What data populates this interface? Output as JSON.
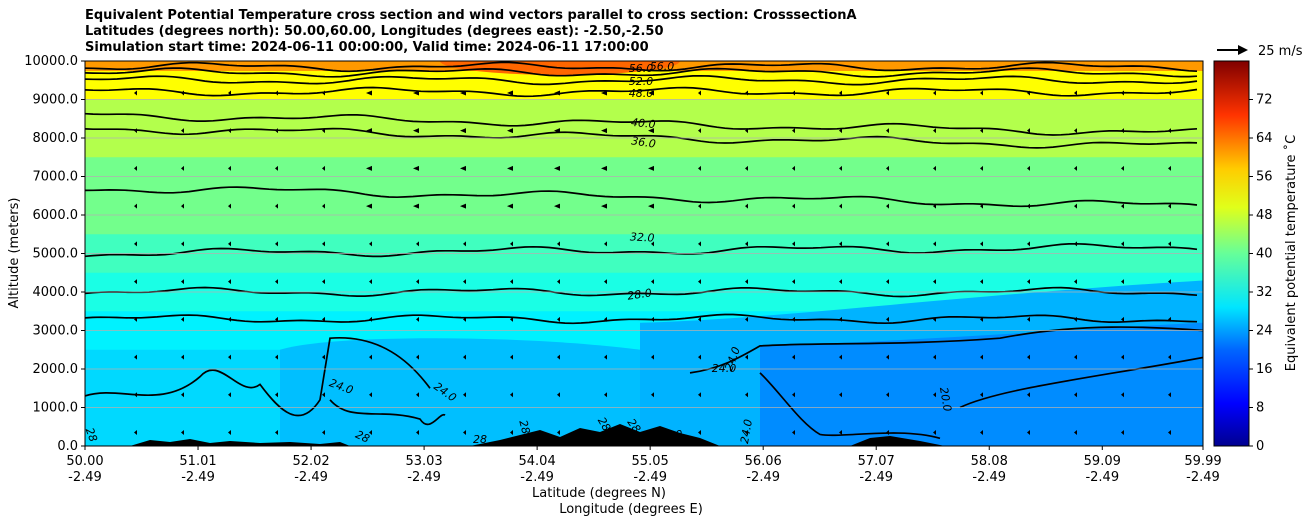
{
  "chart_data": {
    "type": "heatmap",
    "title_lines": [
      "Equivalent Potential Temperature cross section and wind vectors parallel to cross section: CrosssectionA",
      "Latitudes (degrees north): 50.00,60.00, Longitudes (degrees east): -2.50,-2.50",
      "Simulation start time: 2024-06-11 00:00:00, Valid time: 2024-06-11 17:00:00"
    ],
    "ylabel": "Altitude (meters)",
    "xlabel_lines": [
      "Latitude (degrees N)",
      "Longitude (degrees E)"
    ],
    "ylim": [
      0,
      10000
    ],
    "yticks": [
      "0.0",
      "1000.0",
      "2000.0",
      "3000.0",
      "4000.0",
      "5000.0",
      "6000.0",
      "7000.0",
      "8000.0",
      "9000.0",
      "10000.0"
    ],
    "xticks_lat": [
      "50.00",
      "51.01",
      "52.02",
      "53.03",
      "54.04",
      "55.05",
      "56.06",
      "57.07",
      "58.08",
      "59.09",
      "59.99"
    ],
    "xticks_lon": [
      "-2.49",
      "-2.49",
      "-2.49",
      "-2.49",
      "-2.49",
      "-2.49",
      "-2.49",
      "-2.49",
      "-2.49",
      "-2.49",
      "-2.49"
    ],
    "grid": "horizontal",
    "colorbar": {
      "label": "Equivalent potential temperature ˚C",
      "range": [
        0,
        80
      ],
      "ticks": [
        "0",
        "8",
        "16",
        "24",
        "32",
        "40",
        "48",
        "56",
        "64",
        "72"
      ],
      "colormap": "jet"
    },
    "quiver_key": "25 m/s",
    "contour_labels": [
      "56.0",
      "56.0",
      "52.0",
      "48.0",
      "40.0",
      "36.0",
      "32.0",
      "28.0",
      "24.0",
      "24.0",
      "24.0",
      "24.0",
      "20.0",
      "28",
      "28",
      "28",
      "28",
      "28.0",
      "28.0",
      "24.0",
      "28"
    ],
    "fill_bands": [
      {
        "level_top": 10000,
        "theta_c": 50
      },
      {
        "level_top": 9000,
        "theta_c": 44
      },
      {
        "level_top": 7500,
        "theta_c": 39
      },
      {
        "level_top": 5500,
        "theta_c": 35
      },
      {
        "level_top": 4500,
        "theta_c": 32
      },
      {
        "level_top": 3500,
        "theta_c": 29
      },
      {
        "level_top": 2500,
        "theta_c": 27
      }
    ],
    "colors": {
      "terrain": "#000000",
      "contour": "#000000",
      "grid": "#b0b0b0"
    }
  }
}
